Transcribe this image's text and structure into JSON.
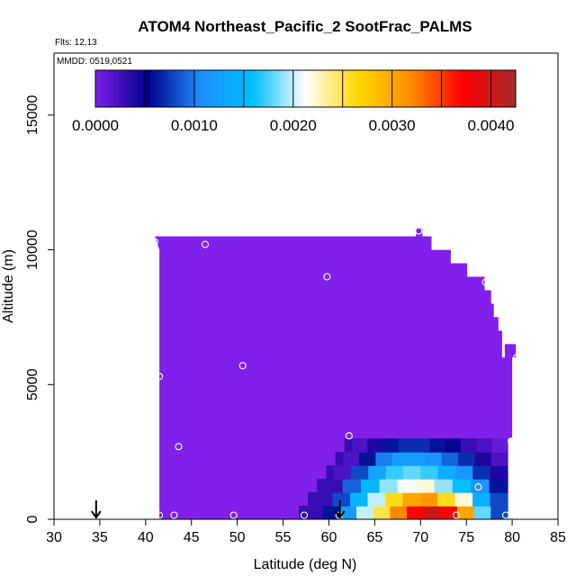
{
  "chart_data": {
    "type": "heatmap",
    "title": "ATOM4 Northeast_Pacific_2 SootFrac_PALMS",
    "flights_label": "Flts: 12,13",
    "dates_label": "MMDD: 0519,0521",
    "xlabel": "Latitude (deg N)",
    "ylabel": "Altitude (m)",
    "xlim": [
      30,
      85
    ],
    "ylim": [
      0,
      17300
    ],
    "x_ticks": [
      "30",
      "35",
      "40",
      "45",
      "50",
      "55",
      "60",
      "65",
      "70",
      "75",
      "80",
      "85"
    ],
    "y_ticks": [
      "0",
      "5000",
      "10000",
      "15000"
    ],
    "colorbar": {
      "min": 0,
      "max": 0.00425,
      "tick_values": [
        0,
        0.001,
        0.002,
        0.003,
        0.004
      ],
      "tick_labels": [
        "0.0000",
        "0.0010",
        "0.0020",
        "0.0030",
        "0.0040"
      ],
      "stops": [
        "#7f1fea",
        "#00008b",
        "#1e90ff",
        "#00bfff",
        "#ffffff",
        "#ffd700",
        "#ff8c00",
        "#ff0000",
        "#a52a2a"
      ]
    },
    "field": {
      "background_value": 0.0,
      "background_color": "#8020ea",
      "top_envelope": [
        {
          "lat": 41,
          "alt": 10500
        },
        {
          "lat": 69.5,
          "alt": 10500
        },
        {
          "lat": 69.5,
          "alt": 10800
        },
        {
          "lat": 70.2,
          "alt": 10800
        },
        {
          "lat": 70.2,
          "alt": 10500
        },
        {
          "lat": 71.2,
          "alt": 10500
        },
        {
          "lat": 71.2,
          "alt": 10000
        },
        {
          "lat": 73.3,
          "alt": 10000
        },
        {
          "lat": 73.3,
          "alt": 9500
        },
        {
          "lat": 75.1,
          "alt": 9500
        },
        {
          "lat": 75.1,
          "alt": 9000
        },
        {
          "lat": 77,
          "alt": 9000
        },
        {
          "lat": 77,
          "alt": 8500
        },
        {
          "lat": 77.7,
          "alt": 8500
        },
        {
          "lat": 77.7,
          "alt": 8000
        },
        {
          "lat": 78,
          "alt": 8000
        },
        {
          "lat": 78,
          "alt": 7500
        },
        {
          "lat": 78.5,
          "alt": 7500
        },
        {
          "lat": 78.5,
          "alt": 7000
        },
        {
          "lat": 78.9,
          "alt": 7000
        },
        {
          "lat": 78.9,
          "alt": 6000
        },
        {
          "lat": 79.2,
          "alt": 6000
        },
        {
          "lat": 79.2,
          "alt": 6500
        },
        {
          "lat": 80.4,
          "alt": 6500
        },
        {
          "lat": 80.4,
          "alt": 6000
        },
        {
          "lat": 80,
          "alt": 6000
        },
        {
          "lat": 80,
          "alt": 3000
        }
      ],
      "left_edge": {
        "lat": 41.5,
        "alt_from": 0,
        "alt_to": 10000
      },
      "plume": {
        "top_alt": 3000,
        "right_lat": 79.5,
        "left_boundary": [
          {
            "alt": 0,
            "lat": 57.5
          },
          {
            "alt": 500,
            "lat": 58.5
          },
          {
            "alt": 1000,
            "lat": 59.5
          },
          {
            "alt": 1500,
            "lat": 60.5
          },
          {
            "alt": 2000,
            "lat": 61.5
          },
          {
            "alt": 2500,
            "lat": 62.5
          },
          {
            "alt": 3000,
            "lat": 64
          }
        ],
        "rows": [
          {
            "alt": 0,
            "values": [
              0.0003,
              0.0006,
              0.0012,
              0.002,
              0.0025,
              0.0032,
              0.0037,
              0.004,
              0.0038,
              0.003,
              0.0018,
              0.0008
            ]
          },
          {
            "alt": 500,
            "values": [
              0.0003,
              0.0008,
              0.0015,
              0.002,
              0.0026,
              0.003,
              0.0031,
              0.0026,
              0.0022,
              0.0014,
              0.0008
            ]
          },
          {
            "alt": 1000,
            "values": [
              0.0003,
              0.0009,
              0.0015,
              0.0019,
              0.0021,
              0.0022,
              0.0019,
              0.0016,
              0.0011,
              0.0006
            ]
          },
          {
            "alt": 1500,
            "values": [
              0.0002,
              0.0008,
              0.0013,
              0.0017,
              0.0018,
              0.0017,
              0.0014,
              0.0011,
              0.0007,
              0.0004
            ]
          },
          {
            "alt": 2000,
            "values": [
              0.0002,
              0.0006,
              0.001,
              0.0012,
              0.0012,
              0.0011,
              0.0009,
              0.0007,
              0.0004,
              0.0002
            ]
          },
          {
            "alt": 2500,
            "values": [
              0.0002,
              0.0004,
              0.0006,
              0.0007,
              0.0007,
              0.0006,
              0.0005,
              0.0003,
              0.0002,
              0.0001
            ]
          }
        ]
      }
    },
    "sample_points": [
      {
        "lat": 41,
        "alt": 10300
      },
      {
        "lat": 46.5,
        "alt": 10200
      },
      {
        "lat": 69.8,
        "alt": 10700
      },
      {
        "lat": 59.8,
        "alt": 9000
      },
      {
        "lat": 77.1,
        "alt": 8800
      },
      {
        "lat": 80.5,
        "alt": 6000
      },
      {
        "lat": 41.5,
        "alt": 5300
      },
      {
        "lat": 50.6,
        "alt": 5700
      },
      {
        "lat": 62.2,
        "alt": 3100
      },
      {
        "lat": 43.6,
        "alt": 2700
      },
      {
        "lat": 79.9,
        "alt": 2900
      },
      {
        "lat": 76.3,
        "alt": 1200
      },
      {
        "lat": 41.5,
        "alt": 150
      },
      {
        "lat": 43.1,
        "alt": 150
      },
      {
        "lat": 49.6,
        "alt": 150
      },
      {
        "lat": 57.3,
        "alt": 150
      },
      {
        "lat": 61.1,
        "alt": 150
      },
      {
        "lat": 73.9,
        "alt": 150
      },
      {
        "lat": 79.3,
        "alt": 150
      }
    ],
    "arrows": [
      {
        "lat": 34.6
      },
      {
        "lat": 61.2
      }
    ]
  }
}
